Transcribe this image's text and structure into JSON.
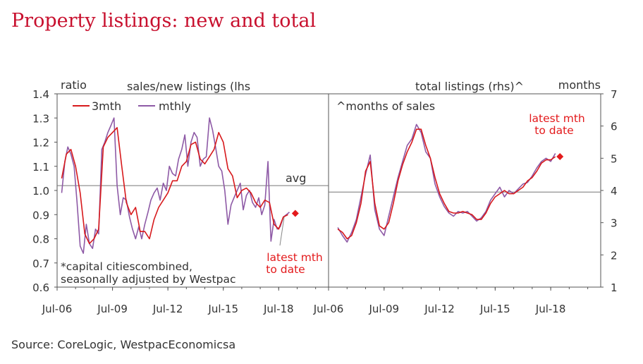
{
  "title": "Property listings: new and total",
  "source": "Source: CoreLogic, WestpacEconomicsa",
  "colors": {
    "title": "#c8102e",
    "line3mth": "#d7191c",
    "lineMthly": "#8e5aa6",
    "marker": "#e31a1c",
    "text": "#333333"
  },
  "chart_data": [
    {
      "type": "line",
      "ylabel_unit": "ratio",
      "series_label": "sales/new listings (lhs",
      "ylim": [
        0.6,
        1.4
      ],
      "yticks": [
        "1.4",
        "1.3",
        "1.2",
        "1.1",
        "1.0",
        "0.9",
        "0.8",
        "0.7",
        "0.6"
      ],
      "xticks": [
        "Jul-06",
        "Jul-09",
        "Jul-12",
        "Jul-15",
        "Jul-18"
      ],
      "xlim": [
        2006.5,
        2021.2
      ],
      "avg": {
        "label": "avg",
        "value": 1.02
      },
      "legend": {
        "position": "top-left",
        "entries": [
          "3mth",
          "mthly"
        ]
      },
      "footnote_lines": [
        "*capital citiescombined,",
        "seasonally adjusted by Westpac"
      ],
      "latest": {
        "label_lines": [
          "latest mth",
          "to date"
        ],
        "x": 2019.4,
        "y": 0.905
      },
      "series": [
        {
          "name": "3mth",
          "x": [
            2006.75,
            2007.0,
            2007.25,
            2007.5,
            2007.75,
            2008.0,
            2008.25,
            2008.5,
            2008.75,
            2009.0,
            2009.25,
            2009.5,
            2009.75,
            2010.0,
            2010.25,
            2010.5,
            2010.75,
            2011.0,
            2011.25,
            2011.5,
            2011.75,
            2012.0,
            2012.25,
            2012.5,
            2012.75,
            2013.0,
            2013.25,
            2013.5,
            2013.75,
            2014.0,
            2014.25,
            2014.5,
            2014.75,
            2015.0,
            2015.25,
            2015.5,
            2015.75,
            2016.0,
            2016.25,
            2016.5,
            2016.75,
            2017.0,
            2017.25,
            2017.5,
            2017.75,
            2018.0,
            2018.25,
            2018.5,
            2018.75,
            2019.0
          ],
          "y": [
            1.05,
            1.15,
            1.17,
            1.1,
            0.99,
            0.82,
            0.78,
            0.8,
            0.84,
            1.18,
            1.22,
            1.24,
            1.26,
            1.1,
            0.95,
            0.9,
            0.93,
            0.83,
            0.83,
            0.8,
            0.88,
            0.93,
            0.96,
            0.99,
            1.04,
            1.04,
            1.1,
            1.12,
            1.19,
            1.2,
            1.13,
            1.11,
            1.14,
            1.17,
            1.24,
            1.2,
            1.09,
            1.06,
            0.97,
            1.0,
            1.01,
            0.99,
            0.95,
            0.93,
            0.96,
            0.95,
            0.86,
            0.84,
            0.89,
            0.9
          ]
        },
        {
          "name": "mthly",
          "x": [
            2006.75,
            2006.92,
            2007.08,
            2007.25,
            2007.42,
            2007.58,
            2007.75,
            2007.92,
            2008.08,
            2008.25,
            2008.42,
            2008.58,
            2008.75,
            2008.92,
            2009.08,
            2009.25,
            2009.42,
            2009.58,
            2009.75,
            2009.92,
            2010.08,
            2010.25,
            2010.42,
            2010.58,
            2010.75,
            2010.92,
            2011.08,
            2011.25,
            2011.42,
            2011.58,
            2011.75,
            2011.92,
            2012.08,
            2012.25,
            2012.42,
            2012.58,
            2012.75,
            2012.92,
            2013.08,
            2013.25,
            2013.42,
            2013.58,
            2013.75,
            2013.92,
            2014.08,
            2014.25,
            2014.42,
            2014.58,
            2014.75,
            2014.92,
            2015.08,
            2015.25,
            2015.42,
            2015.58,
            2015.75,
            2015.92,
            2016.08,
            2016.25,
            2016.42,
            2016.58,
            2016.75,
            2016.92,
            2017.08,
            2017.25,
            2017.42,
            2017.58,
            2017.75,
            2017.92,
            2018.08,
            2018.25,
            2018.42,
            2018.58,
            2018.75,
            2018.92,
            2019.08
          ],
          "y": [
            0.99,
            1.12,
            1.18,
            1.15,
            1.1,
            0.95,
            0.77,
            0.74,
            0.86,
            0.78,
            0.76,
            0.84,
            0.82,
            1.17,
            1.2,
            1.24,
            1.27,
            1.3,
            1.02,
            0.9,
            0.97,
            0.96,
            0.89,
            0.84,
            0.8,
            0.85,
            0.8,
            0.86,
            0.91,
            0.96,
            0.99,
            1.01,
            0.96,
            1.03,
            1.0,
            1.1,
            1.07,
            1.06,
            1.13,
            1.17,
            1.23,
            1.1,
            1.2,
            1.24,
            1.22,
            1.1,
            1.13,
            1.14,
            1.3,
            1.25,
            1.18,
            1.1,
            1.08,
            1.0,
            0.86,
            0.94,
            0.97,
            1.0,
            1.03,
            0.92,
            0.98,
            1.0,
            0.95,
            0.93,
            0.97,
            0.9,
            0.94,
            1.12,
            0.79,
            0.88,
            0.84,
            0.85,
            0.89,
            0.9,
            0.91
          ]
        }
      ]
    },
    {
      "type": "line",
      "ylabel_unit": "months",
      "series_label": "total listings (rhs)^",
      "subtitle": "^months of sales",
      "ylim": [
        1,
        7
      ],
      "yticks": [
        "7",
        "6",
        "5",
        "4",
        "3",
        "2",
        "1"
      ],
      "xticks": [
        "Jul-06",
        "Jul-09",
        "Jul-12",
        "Jul-15",
        "Jul-18"
      ],
      "xlim": [
        2006.5,
        2021.2
      ],
      "avg": {
        "value": 3.95
      },
      "latest": {
        "label_lines": [
          "latest mth",
          "to date"
        ],
        "x": 2019.0,
        "y": 5.05
      },
      "series": [
        {
          "name": "3mth",
          "x": [
            2007.0,
            2007.25,
            2007.5,
            2007.75,
            2008.0,
            2008.25,
            2008.5,
            2008.75,
            2009.0,
            2009.25,
            2009.5,
            2009.75,
            2010.0,
            2010.25,
            2010.5,
            2010.75,
            2011.0,
            2011.25,
            2011.5,
            2011.75,
            2012.0,
            2012.25,
            2012.5,
            2012.75,
            2013.0,
            2013.25,
            2013.5,
            2013.75,
            2014.0,
            2014.25,
            2014.5,
            2014.75,
            2015.0,
            2015.25,
            2015.5,
            2015.75,
            2016.0,
            2016.25,
            2016.5,
            2016.75,
            2017.0,
            2017.25,
            2017.5,
            2017.75,
            2018.0,
            2018.25,
            2018.5,
            2018.75
          ],
          "y": [
            2.8,
            2.7,
            2.5,
            2.6,
            3.0,
            3.6,
            4.6,
            4.9,
            3.6,
            2.9,
            2.8,
            3.0,
            3.6,
            4.3,
            4.8,
            5.2,
            5.5,
            5.9,
            5.9,
            5.4,
            5.0,
            4.4,
            3.9,
            3.6,
            3.35,
            3.3,
            3.3,
            3.35,
            3.3,
            3.25,
            3.1,
            3.1,
            3.3,
            3.6,
            3.8,
            3.9,
            4.0,
            3.9,
            3.9,
            4.0,
            4.1,
            4.3,
            4.4,
            4.6,
            4.85,
            4.95,
            4.95,
            5.05
          ]
        },
        {
          "name": "mthly",
          "x": [
            2007.0,
            2007.25,
            2007.5,
            2007.75,
            2008.0,
            2008.25,
            2008.5,
            2008.75,
            2009.0,
            2009.25,
            2009.5,
            2009.75,
            2010.0,
            2010.25,
            2010.5,
            2010.75,
            2011.0,
            2011.25,
            2011.5,
            2011.75,
            2012.0,
            2012.25,
            2012.5,
            2012.75,
            2013.0,
            2013.25,
            2013.5,
            2013.75,
            2014.0,
            2014.25,
            2014.5,
            2014.75,
            2015.0,
            2015.25,
            2015.5,
            2015.75,
            2016.0,
            2016.25,
            2016.5,
            2016.75,
            2017.0,
            2017.25,
            2017.5,
            2017.75,
            2018.0,
            2018.25,
            2018.5,
            2018.75
          ],
          "y": [
            2.85,
            2.6,
            2.4,
            2.7,
            3.1,
            3.8,
            4.5,
            5.1,
            3.4,
            2.8,
            2.6,
            3.2,
            3.8,
            4.4,
            4.9,
            5.4,
            5.6,
            6.05,
            5.8,
            5.2,
            5.0,
            4.2,
            3.8,
            3.5,
            3.3,
            3.2,
            3.35,
            3.3,
            3.35,
            3.2,
            3.05,
            3.15,
            3.35,
            3.7,
            3.9,
            4.1,
            3.8,
            4.0,
            3.9,
            4.05,
            4.2,
            4.25,
            4.45,
            4.7,
            4.9,
            5.0,
            4.9,
            5.15
          ]
        }
      ]
    }
  ]
}
